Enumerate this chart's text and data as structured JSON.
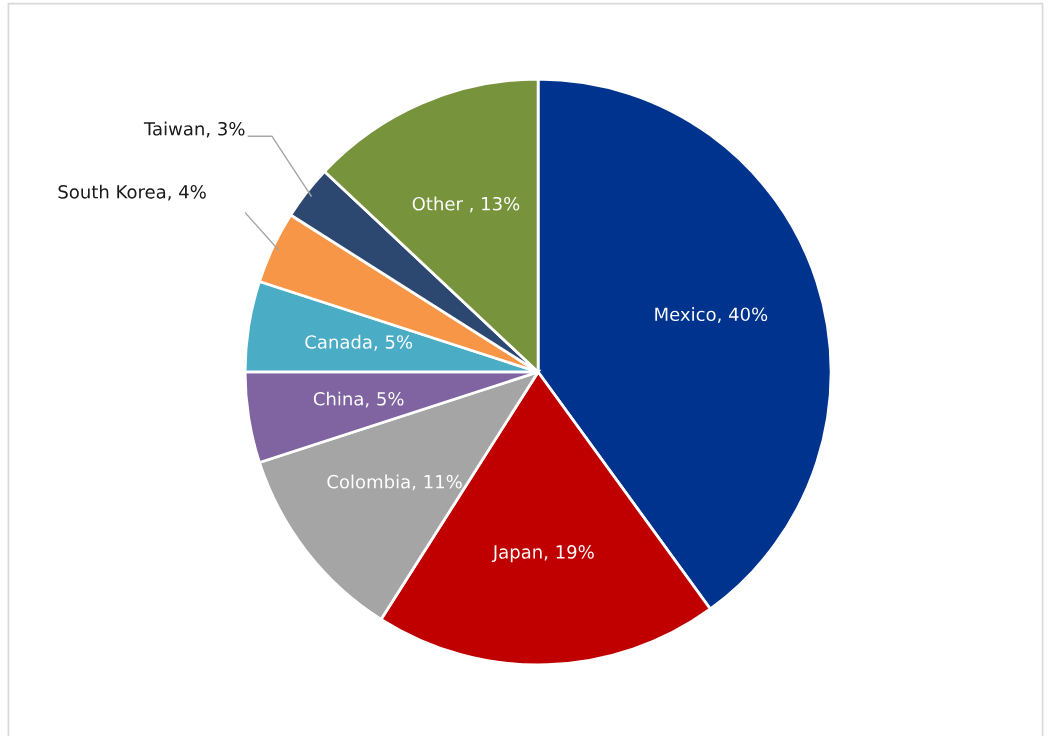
{
  "chart_data": {
    "type": "pie",
    "categories": [
      "Mexico",
      "Japan",
      "Colombia",
      "China",
      "Canada",
      "South Korea",
      "Taiwan",
      "Other "
    ],
    "values": [
      40,
      19,
      11,
      5,
      5,
      4,
      3,
      13
    ],
    "value_labels": [
      "40%",
      "19%",
      "11%",
      "5%",
      "5%",
      "4%",
      "3%",
      "13%"
    ],
    "colors": [
      "#00338d",
      "#c00000",
      "#a5a5a5",
      "#8064a2",
      "#4bacc6",
      "#f79646",
      "#2c4770",
      "#77933c"
    ]
  }
}
